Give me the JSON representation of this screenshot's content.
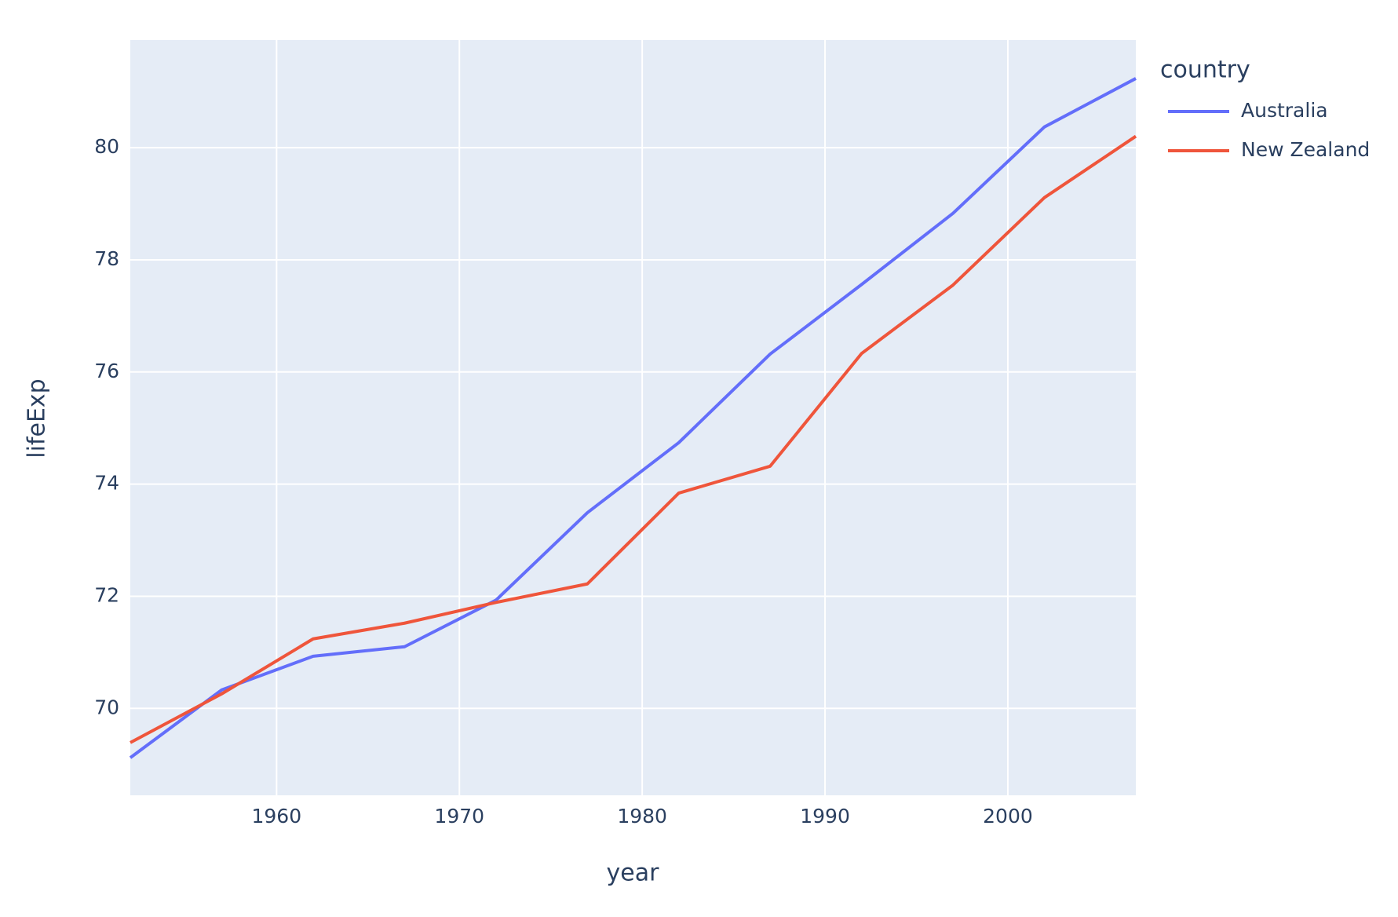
{
  "chart_data": {
    "type": "line",
    "x_label": "year",
    "y_label": "lifeExp",
    "legend_title": "country",
    "x": [
      1952,
      1957,
      1962,
      1967,
      1972,
      1977,
      1982,
      1987,
      1992,
      1997,
      2002,
      2007
    ],
    "series": [
      {
        "name": "Australia",
        "color": "#636efa",
        "values": [
          69.12,
          70.33,
          70.93,
          71.1,
          71.93,
          73.49,
          74.74,
          76.32,
          77.56,
          78.83,
          80.37,
          81.235
        ]
      },
      {
        "name": "New Zealand",
        "color": "#EF553B",
        "values": [
          69.39,
          70.26,
          71.24,
          71.52,
          71.89,
          72.22,
          73.84,
          74.32,
          76.33,
          77.55,
          79.11,
          80.204
        ]
      }
    ],
    "xlim": [
      1952,
      2007
    ],
    "xticks": [
      1960,
      1970,
      1980,
      1990,
      2000
    ],
    "ylim": [
      68.45,
      81.92
    ],
    "yticks": [
      70,
      72,
      74,
      76,
      78,
      80
    ],
    "grid": true,
    "legend": "right"
  }
}
